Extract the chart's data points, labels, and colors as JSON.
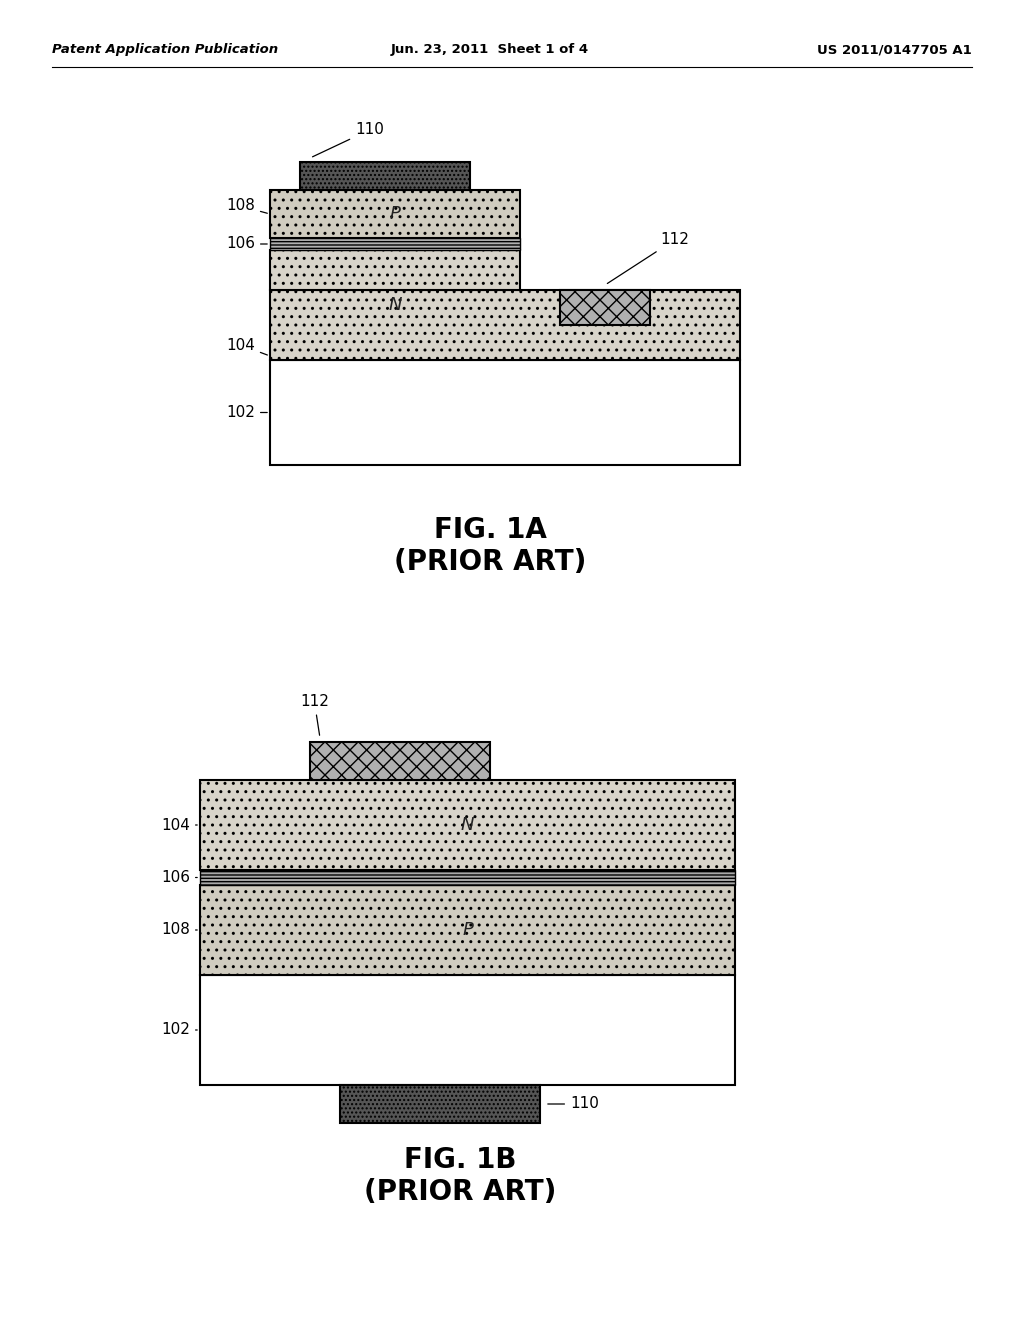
{
  "header_left": "Patent Application Publication",
  "header_center": "Jun. 23, 2011  Sheet 1 of 4",
  "header_right": "US 2011/0147705 A1",
  "fig1a_title": "FIG. 1A",
  "fig1a_subtitle": "(PRIOR ART)",
  "fig1b_title": "FIG. 1B",
  "fig1b_subtitle": "(PRIOR ART)",
  "bg_color": "#ffffff"
}
